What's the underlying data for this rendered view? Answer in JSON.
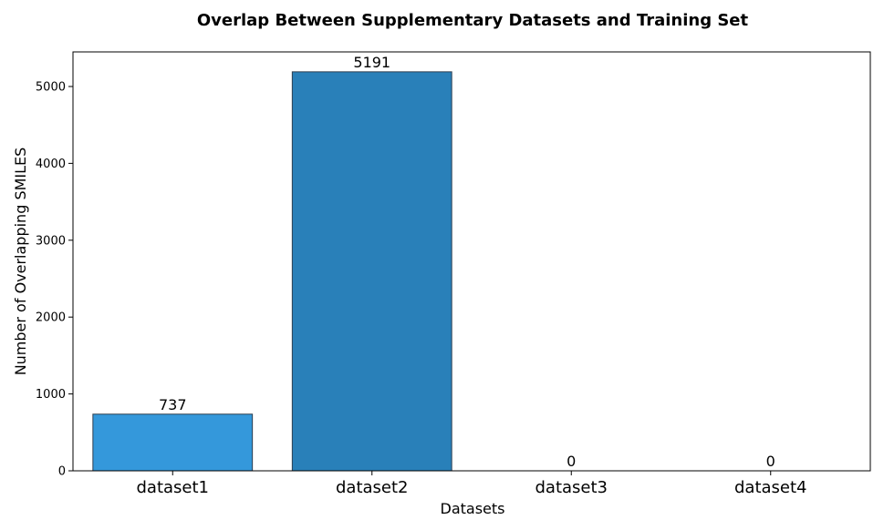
{
  "chart_data": {
    "type": "bar",
    "title": "Overlap Between Supplementary Datasets and Training Set",
    "xlabel": "Datasets",
    "ylabel": "Number of Overlapping SMILES",
    "categories": [
      "dataset1",
      "dataset2",
      "dataset3",
      "dataset4"
    ],
    "values": [
      737,
      5191,
      0,
      0
    ],
    "data_labels": [
      "737",
      "5191",
      "0",
      "0"
    ],
    "bar_colors": [
      "#3498db",
      "#2980b9",
      "#2980b9",
      "#2980b9"
    ],
    "edge_color": "#2c3e50",
    "ylim": [
      0,
      5450
    ],
    "yticks": [
      0,
      1000,
      2000,
      3000,
      4000,
      5000
    ],
    "ytick_labels": [
      "0",
      "1000",
      "2000",
      "3000",
      "4000",
      "5000"
    ],
    "grid": false,
    "legend": "none"
  }
}
